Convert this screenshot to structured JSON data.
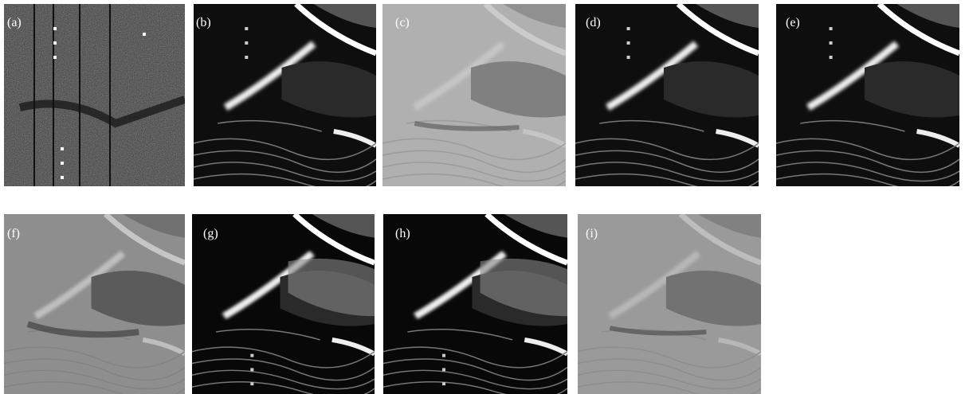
{
  "panels": [
    {
      "label": "(a)"
    },
    {
      "label": "(b)"
    },
    {
      "label": "(c)"
    },
    {
      "label": "(d)"
    },
    {
      "label": "(e)"
    },
    {
      "label": "(f)"
    },
    {
      "label": "(g)"
    },
    {
      "label": "(h)"
    },
    {
      "label": "(i)"
    }
  ]
}
